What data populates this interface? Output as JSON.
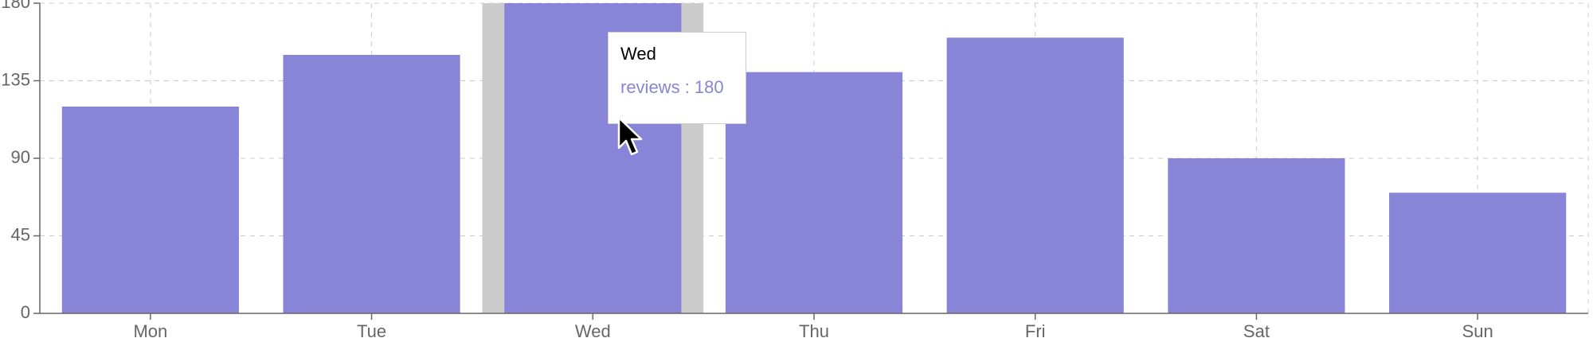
{
  "chart_data": {
    "type": "bar",
    "categories": [
      "Mon",
      "Tue",
      "Wed",
      "Thu",
      "Fri",
      "Sat",
      "Sun"
    ],
    "series": [
      {
        "name": "reviews",
        "values": [
          120,
          150,
          180,
          140,
          160,
          90,
          70
        ],
        "color": "#8884d8"
      }
    ],
    "ylim": [
      0,
      180
    ],
    "yticks": [
      0,
      45,
      90,
      135,
      180
    ],
    "grid": true,
    "xlabel": "",
    "ylabel": "",
    "highlighted_category": "Wed"
  },
  "tooltip": {
    "title": "Wed",
    "item_label": "reviews",
    "separator": " : ",
    "item_value": "180"
  },
  "colors": {
    "bar": "#8884d8",
    "cursor_band": "#cccccc",
    "grid": "#cccccc",
    "axis": "#666666"
  }
}
